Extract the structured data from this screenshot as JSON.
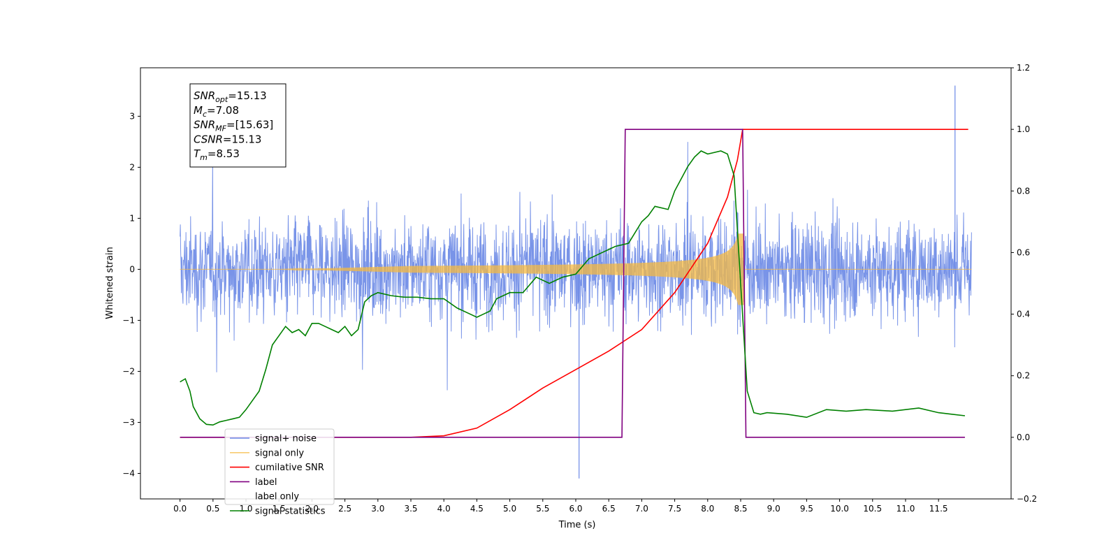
{
  "chart_data": {
    "type": "line",
    "xlabel": "Time (s)",
    "ylabel": "Whitened strain",
    "xlim": [
      -0.6,
      12.6
    ],
    "ylim": [
      -4.5,
      3.95
    ],
    "y2lim": [
      -0.2,
      1.2
    ],
    "xticks": [
      "0.0",
      "0.5",
      "1.0",
      "1.5",
      "2.0",
      "2.5",
      "3.0",
      "3.5",
      "4.0",
      "4.5",
      "5.0",
      "5.5",
      "6.0",
      "6.5",
      "7.0",
      "7.5",
      "8.0",
      "8.5",
      "9.0",
      "9.5",
      "10.0",
      "10.5",
      "11.0",
      "11.5"
    ],
    "yticks": [
      "3",
      "2",
      "1",
      "0",
      "−1",
      "−2",
      "−3",
      "−4"
    ],
    "y2ticks": [
      "1.2",
      "1.0",
      "0.8",
      "0.6",
      "0.4",
      "0.2",
      "0.0",
      "−0.2"
    ],
    "grid": false,
    "legend_position": "lower-left",
    "annotation": {
      "lines": [
        {
          "sym": "SNR",
          "sub": "opt",
          "value": "=15.13"
        },
        {
          "sym": "M",
          "sub": "c",
          "value": "=7.08"
        },
        {
          "sym": "SNR",
          "sub": "MF",
          "value": "=[15.63]"
        },
        {
          "sym": "CSNR",
          "sub": "",
          "value": "=15.13"
        },
        {
          "sym": "T",
          "sub": "m",
          "value": "=8.53"
        }
      ]
    },
    "series": [
      {
        "name": "signal+ noise",
        "color": "#6a88e6",
        "axis": "left",
        "kind": "noise",
        "duration": 12.0,
        "merger_time": 8.53,
        "approx_amplitude": 1.5,
        "peak_values": [
          3.6,
          -4.1
        ]
      },
      {
        "name": "signal only",
        "color": "#f5b942",
        "axis": "left",
        "kind": "chirp",
        "start": 0.0,
        "end": 8.53,
        "peak_amplitude": 0.7
      },
      {
        "name": "cumilative SNR",
        "color": "#ff0000",
        "axis": "right",
        "x": [
          0.0,
          3.5,
          4.0,
          4.5,
          5.0,
          5.5,
          6.0,
          6.5,
          7.0,
          7.5,
          8.0,
          8.3,
          8.45,
          8.53,
          8.6,
          11.95
        ],
        "y": [
          0.0,
          0.0,
          0.005,
          0.03,
          0.09,
          0.16,
          0.22,
          0.28,
          0.35,
          0.47,
          0.63,
          0.78,
          0.9,
          1.0,
          1.0,
          1.0
        ]
      },
      {
        "name": "label",
        "color": "#800080",
        "axis": "right",
        "x": [
          0.0,
          6.7,
          6.75,
          8.53,
          8.58,
          11.9
        ],
        "y": [
          0.0,
          0.0,
          1.0,
          1.0,
          0.0,
          0.0
        ]
      },
      {
        "name": "label only",
        "color": "#ffffff",
        "axis": "right",
        "kind": "hidden"
      },
      {
        "name": "signal statistics",
        "color": "#008000",
        "axis": "right",
        "x": [
          0.0,
          0.08,
          0.15,
          0.2,
          0.3,
          0.4,
          0.5,
          0.6,
          0.7,
          0.8,
          0.9,
          1.0,
          1.1,
          1.2,
          1.3,
          1.4,
          1.5,
          1.6,
          1.7,
          1.8,
          1.9,
          2.0,
          2.1,
          2.2,
          2.3,
          2.4,
          2.5,
          2.6,
          2.7,
          2.8,
          2.9,
          3.0,
          3.2,
          3.4,
          3.6,
          3.8,
          4.0,
          4.2,
          4.4,
          4.5,
          4.6,
          4.7,
          4.8,
          5.0,
          5.2,
          5.4,
          5.6,
          5.8,
          6.0,
          6.2,
          6.4,
          6.6,
          6.8,
          7.0,
          7.1,
          7.2,
          7.4,
          7.5,
          7.6,
          7.7,
          7.8,
          7.9,
          8.0,
          8.2,
          8.3,
          8.4,
          8.5,
          8.6,
          8.7,
          8.8,
          8.9,
          9.2,
          9.5,
          9.8,
          10.1,
          10.4,
          10.8,
          11.2,
          11.5,
          11.7,
          11.9
        ],
        "y": [
          0.18,
          0.19,
          0.15,
          0.1,
          0.06,
          0.042,
          0.04,
          0.05,
          0.055,
          0.06,
          0.065,
          0.09,
          0.12,
          0.15,
          0.22,
          0.3,
          0.33,
          0.36,
          0.34,
          0.35,
          0.33,
          0.37,
          0.37,
          0.36,
          0.35,
          0.34,
          0.36,
          0.33,
          0.35,
          0.44,
          0.46,
          0.47,
          0.46,
          0.455,
          0.455,
          0.45,
          0.45,
          0.42,
          0.4,
          0.39,
          0.4,
          0.41,
          0.45,
          0.47,
          0.47,
          0.52,
          0.5,
          0.52,
          0.53,
          0.58,
          0.6,
          0.62,
          0.63,
          0.7,
          0.72,
          0.75,
          0.74,
          0.8,
          0.84,
          0.88,
          0.91,
          0.93,
          0.92,
          0.93,
          0.92,
          0.85,
          0.5,
          0.15,
          0.08,
          0.075,
          0.08,
          0.075,
          0.065,
          0.09,
          0.085,
          0.09,
          0.085,
          0.095,
          0.08,
          0.075,
          0.07
        ]
      }
    ]
  }
}
